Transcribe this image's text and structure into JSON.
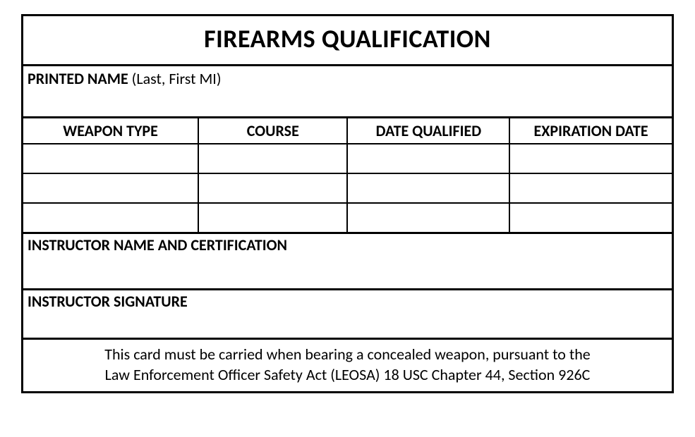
{
  "title": "FIREARMS QUALIFICATION",
  "printed_name": {
    "label": "PRINTED NAME",
    "hint": " (Last,  First  MI)"
  },
  "columns": {
    "weapon_type": "WEAPON TYPE",
    "course": "COURSE",
    "date_qualified": "DATE QUALIFIED",
    "expiration_date": "EXPIRATION DATE"
  },
  "rows": [
    {
      "weapon_type": "",
      "course": "",
      "date_qualified": "",
      "expiration_date": ""
    },
    {
      "weapon_type": "",
      "course": "",
      "date_qualified": "",
      "expiration_date": ""
    },
    {
      "weapon_type": "",
      "course": "",
      "date_qualified": "",
      "expiration_date": ""
    }
  ],
  "instructor_name_label": "INSTRUCTOR NAME AND CERTIFICATION",
  "instructor_signature_label": "INSTRUCTOR SIGNATURE",
  "footer_line1": "This card must be carried when bearing a concealed weapon, pursuant to the",
  "footer_line2": "Law Enforcement Officer Safety Act (LEOSA) 18 USC Chapter 44, Section 926C",
  "styling": {
    "border_color": "#000000",
    "background_color": "#ffffff",
    "title_fontsize": 36,
    "label_fontsize": 22,
    "body_fontsize": 22,
    "outer_border_width": 3,
    "inner_border_width": 2,
    "font_family": "Calibri"
  }
}
